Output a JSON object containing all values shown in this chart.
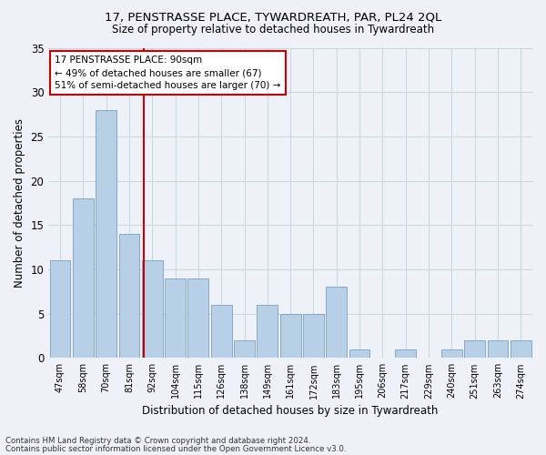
{
  "title1": "17, PENSTRASSE PLACE, TYWARDREATH, PAR, PL24 2QL",
  "title2": "Size of property relative to detached houses in Tywardreath",
  "xlabel": "Distribution of detached houses by size in Tywardreath",
  "ylabel": "Number of detached properties",
  "bin_labels": [
    "47sqm",
    "58sqm",
    "70sqm",
    "81sqm",
    "92sqm",
    "104sqm",
    "115sqm",
    "126sqm",
    "138sqm",
    "149sqm",
    "161sqm",
    "172sqm",
    "183sqm",
    "195sqm",
    "206sqm",
    "217sqm",
    "229sqm",
    "240sqm",
    "251sqm",
    "263sqm",
    "274sqm"
  ],
  "bar_values": [
    11,
    18,
    28,
    14,
    11,
    9,
    9,
    6,
    2,
    6,
    5,
    5,
    8,
    1,
    0,
    1,
    0,
    1,
    2,
    2,
    2
  ],
  "bar_color": "#b8cfe8",
  "bar_edge_color": "#7a9fc0",
  "vline_color": "#cc0000",
  "annotation_text": "17 PENSTRASSE PLACE: 90sqm\n← 49% of detached houses are smaller (67)\n51% of semi-detached houses are larger (70) →",
  "annotation_box_color": "#ffffff",
  "annotation_box_edge": "#cc0000",
  "footer1": "Contains HM Land Registry data © Crown copyright and database right 2024.",
  "footer2": "Contains public sector information licensed under the Open Government Licence v3.0.",
  "bg_color": "#eef2f8",
  "grid_color": "#c8d4e4",
  "ylim": [
    0,
    35
  ],
  "yticks": [
    0,
    5,
    10,
    15,
    20,
    25,
    30,
    35
  ]
}
